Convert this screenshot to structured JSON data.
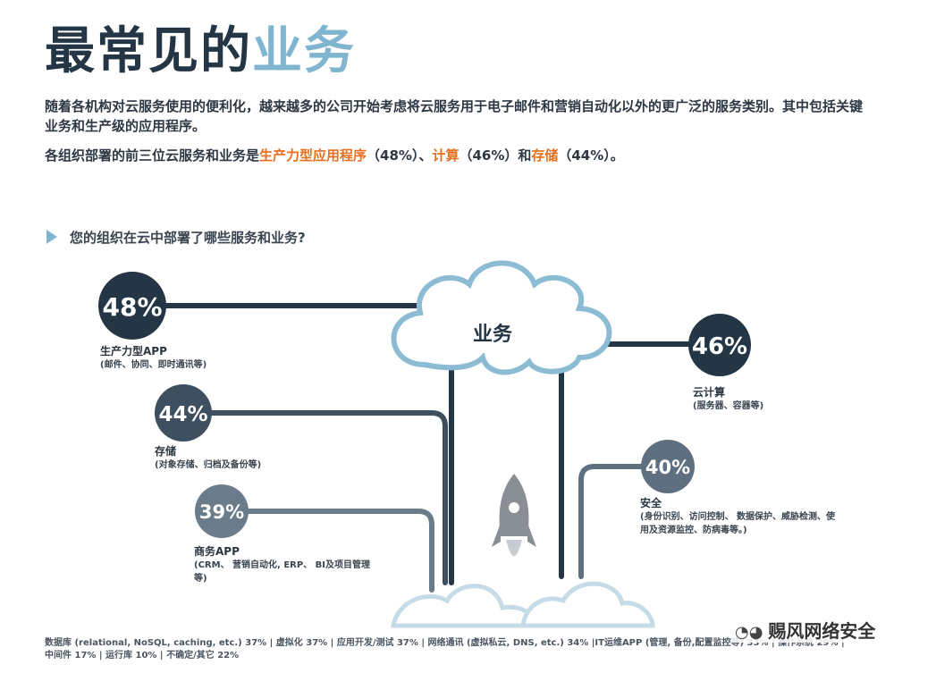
{
  "header": {
    "title_main": "最常见的",
    "title_accent": "业务",
    "intro": "随着各机构对云服务使用的便利化，越来越多的公司开始考虑将云服务用于电子邮件和营销自动化以外的更广泛的服务类别。其中包括关键业务和生产级的应用程序。",
    "line2_prefix": "各组织部署的前三位云服务和业务是",
    "top1": "生产力型应用程序",
    "top1_pct": "（48%）、",
    "top2": "计算",
    "top2_pct": "（46%）和",
    "top3": "存储",
    "top3_pct": "（44%）。"
  },
  "question": "您的组织在云中部署了哪些服务和业务?",
  "cloud_label": "业务",
  "chart_data": {
    "type": "bubble-diagram",
    "title": "您的组织在云中部署了哪些服务和业务?",
    "items": [
      {
        "id": "productivity",
        "value_label": "48%",
        "value": 48,
        "name": "生产力型APP",
        "desc": "(邮件、协同、即时通讯等)"
      },
      {
        "id": "compute",
        "value_label": "46%",
        "value": 46,
        "name": "云计算",
        "desc": "(服务器、容器等)"
      },
      {
        "id": "storage",
        "value_label": "44%",
        "value": 44,
        "name": "存储",
        "desc": "(对象存储、归档及备份等)"
      },
      {
        "id": "security",
        "value_label": "40%",
        "value": 40,
        "name": "安全",
        "desc": "(身份识别、访问控制、 数据保护、威胁检测、使用及资源监控、防病毒等。)"
      },
      {
        "id": "business",
        "value_label": "39%",
        "value": 39,
        "name": "商务APP",
        "desc": "(CRM、 营销自动化, ERP、 BI及项目管理等)"
      }
    ],
    "others": [
      {
        "name": "数据库 (relational, NoSQL, caching, etc.)",
        "value": 37
      },
      {
        "name": "虚拟化",
        "value": 37
      },
      {
        "name": "应用开发/测试",
        "value": 37
      },
      {
        "name": "网络通讯 (虚拟私云, DNS, etc.)",
        "value": 34
      },
      {
        "name": "IT运维APP (管理, 备份,配置监控等)",
        "value": 33
      },
      {
        "name": "操作系统",
        "value": 29
      },
      {
        "name": "中间件",
        "value": 17
      },
      {
        "name": "运行库",
        "value": 10
      },
      {
        "name": "不确定/其它",
        "value": 22
      }
    ]
  },
  "footer": {
    "row1": "数据库 (relational, NoSQL, caching, etc.) 37% | 虚拟化 37% | 应用开发/测试 37% | 网络通讯 (虚拟私云, DNS, etc.) 34% |IT运维APP (管理, 备份,配置监控等) 33% | 操作系统 29% |",
    "row2": "中间件 17% | 运行库 10% | 不确定/其它 22%"
  },
  "watermark": "赐风网络安全",
  "colors": {
    "dark": "#243646",
    "gray": "#5e7080",
    "light": "#7fb5cf",
    "orange": "#e86e1c"
  }
}
